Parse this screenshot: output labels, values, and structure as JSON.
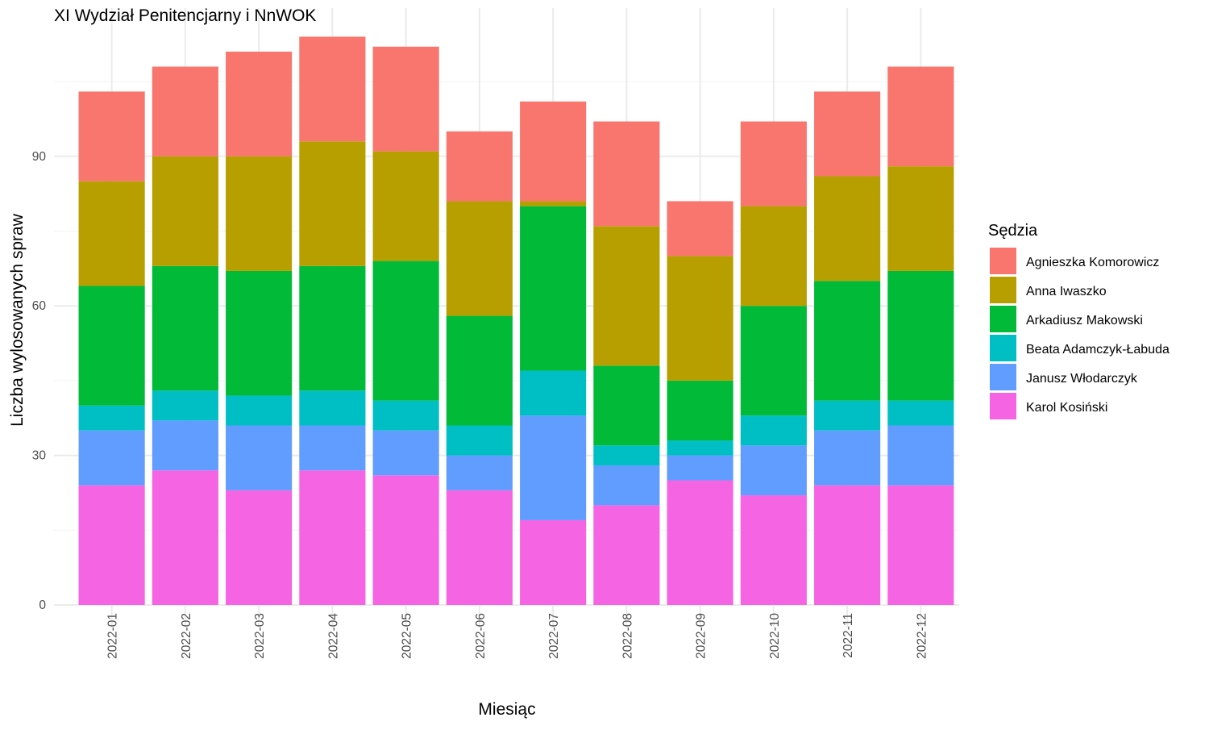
{
  "chart_data": {
    "type": "bar",
    "stacked": true,
    "title": "XI Wydział Penitencjarny i NnWOK",
    "xlabel": "Miesiąc",
    "ylabel": "Liczba wylosowanych spraw",
    "ylim": [
      0,
      114
    ],
    "yticks": [
      0,
      30,
      60,
      90
    ],
    "grid": true,
    "legend_title": "Sędzia",
    "legend_position": "right",
    "categories": [
      "2022-01",
      "2022-02",
      "2022-03",
      "2022-04",
      "2022-05",
      "2022-06",
      "2022-07",
      "2022-08",
      "2022-09",
      "2022-10",
      "2022-11",
      "2022-12"
    ],
    "series": [
      {
        "name": "Karol Kosiński",
        "color": "#F564E3",
        "values": [
          24,
          27,
          23,
          27,
          26,
          23,
          17,
          20,
          25,
          22,
          24,
          24
        ]
      },
      {
        "name": "Janusz Włodarczyk",
        "color": "#619CFF",
        "values": [
          11,
          10,
          13,
          9,
          9,
          7,
          21,
          8,
          5,
          10,
          11,
          12
        ]
      },
      {
        "name": "Beata Adamczyk-Łabuda",
        "color": "#00BFC4",
        "values": [
          5,
          6,
          6,
          7,
          6,
          6,
          9,
          4,
          3,
          6,
          6,
          5
        ]
      },
      {
        "name": "Arkadiusz Makowski",
        "color": "#00BA38",
        "values": [
          24,
          25,
          25,
          25,
          28,
          22,
          33,
          16,
          12,
          22,
          24,
          26
        ]
      },
      {
        "name": "Anna Iwaszko",
        "color": "#B79F00",
        "values": [
          21,
          22,
          23,
          25,
          22,
          23,
          1,
          28,
          25,
          20,
          21,
          21
        ]
      },
      {
        "name": "Agnieszka Komorowicz",
        "color": "#F8766D",
        "values": [
          18,
          18,
          21,
          21,
          21,
          14,
          20,
          21,
          11,
          17,
          17,
          20
        ]
      }
    ]
  }
}
